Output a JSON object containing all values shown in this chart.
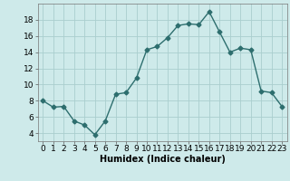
{
  "x": [
    0,
    1,
    2,
    3,
    4,
    5,
    6,
    7,
    8,
    9,
    10,
    11,
    12,
    13,
    14,
    15,
    16,
    17,
    18,
    19,
    20,
    21,
    22,
    23
  ],
  "y": [
    8.0,
    7.2,
    7.3,
    5.5,
    5.0,
    3.8,
    5.5,
    8.8,
    9.0,
    10.8,
    14.3,
    14.7,
    15.8,
    17.3,
    17.5,
    17.4,
    19.0,
    16.5,
    14.0,
    14.5,
    14.3,
    9.2,
    9.0,
    7.3
  ],
  "line_color": "#2d6e6e",
  "marker": "D",
  "marker_size": 2.5,
  "bg_color": "#ceeaea",
  "grid_color": "#aacece",
  "xlabel": "Humidex (Indice chaleur)",
  "ylim": [
    3,
    20
  ],
  "xlim": [
    -0.5,
    23.5
  ],
  "yticks": [
    4,
    6,
    8,
    10,
    12,
    14,
    16,
    18
  ],
  "xticks": [
    0,
    1,
    2,
    3,
    4,
    5,
    6,
    7,
    8,
    9,
    10,
    11,
    12,
    13,
    14,
    15,
    16,
    17,
    18,
    19,
    20,
    21,
    22,
    23
  ],
  "xlabel_fontsize": 7,
  "tick_fontsize": 6.5,
  "line_width": 1.0
}
